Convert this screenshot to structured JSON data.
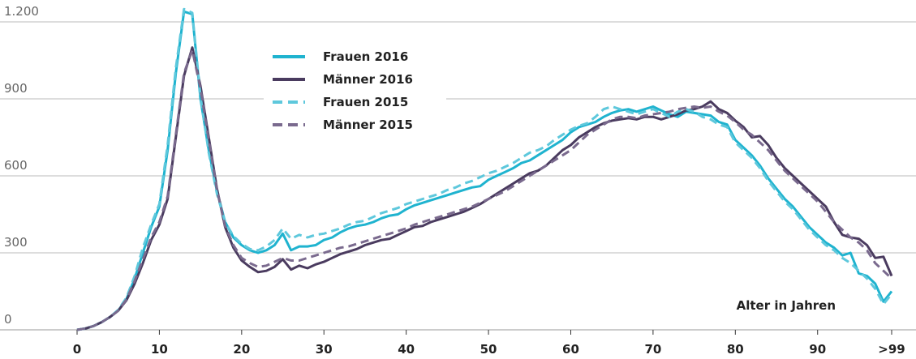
{
  "chart_data": {
    "type": "line",
    "x_label": "Alter in Jahren",
    "x": [
      0,
      1,
      2,
      3,
      4,
      5,
      6,
      7,
      8,
      9,
      10,
      11,
      12,
      13,
      14,
      15,
      16,
      17,
      18,
      19,
      20,
      21,
      22,
      23,
      24,
      25,
      26,
      27,
      28,
      29,
      30,
      31,
      32,
      33,
      34,
      35,
      36,
      37,
      38,
      39,
      40,
      41,
      42,
      43,
      44,
      45,
      46,
      47,
      48,
      49,
      50,
      51,
      52,
      53,
      54,
      55,
      56,
      57,
      58,
      59,
      60,
      61,
      62,
      63,
      64,
      65,
      66,
      67,
      68,
      69,
      70,
      71,
      72,
      73,
      74,
      75,
      76,
      77,
      78,
      79,
      80,
      81,
      82,
      83,
      84,
      85,
      86,
      87,
      88,
      89,
      90,
      91,
      92,
      93,
      94,
      95,
      96,
      97,
      98,
      99
    ],
    "series": [
      {
        "name": "Frauen 2016",
        "color": "#1fb3cf",
        "dash": false,
        "values": [
          0,
          5,
          15,
          30,
          50,
          75,
          120,
          200,
          300,
          400,
          480,
          700,
          1000,
          1240,
          1230,
          900,
          700,
          540,
          420,
          360,
          330,
          310,
          300,
          310,
          330,
          375,
          310,
          325,
          325,
          330,
          350,
          360,
          380,
          395,
          405,
          410,
          420,
          435,
          445,
          450,
          470,
          485,
          495,
          505,
          515,
          525,
          535,
          545,
          555,
          560,
          585,
          600,
          615,
          630,
          650,
          660,
          680,
          700,
          720,
          740,
          770,
          790,
          800,
          810,
          830,
          845,
          855,
          860,
          850,
          860,
          870,
          855,
          840,
          830,
          850,
          845,
          840,
          835,
          810,
          800,
          740,
          710,
          680,
          640,
          590,
          550,
          510,
          480,
          440,
          400,
          370,
          340,
          320,
          290,
          300,
          220,
          210,
          180,
          110,
          150
        ]
      },
      {
        "name": "Männer 2016",
        "color": "#4a3b5f",
        "dash": false,
        "values": [
          0,
          5,
          15,
          30,
          50,
          75,
          115,
          180,
          260,
          350,
          410,
          510,
          750,
          990,
          1100,
          950,
          750,
          550,
          400,
          320,
          270,
          245,
          225,
          230,
          245,
          275,
          235,
          250,
          240,
          255,
          265,
          280,
          295,
          305,
          315,
          330,
          340,
          350,
          355,
          370,
          385,
          400,
          405,
          420,
          430,
          440,
          450,
          460,
          475,
          490,
          510,
          530,
          550,
          570,
          590,
          610,
          620,
          640,
          670,
          700,
          720,
          750,
          770,
          790,
          805,
          815,
          820,
          825,
          820,
          830,
          830,
          820,
          830,
          840,
          855,
          860,
          870,
          890,
          860,
          845,
          815,
          790,
          750,
          755,
          720,
          670,
          630,
          600,
          570,
          540,
          510,
          480,
          420,
          370,
          360,
          355,
          330,
          280,
          285,
          210
        ]
      },
      {
        "name": "Frauen 2015",
        "color": "#5ec8dc",
        "dash": true,
        "values": [
          0,
          5,
          15,
          30,
          50,
          78,
          125,
          210,
          320,
          410,
          490,
          720,
          1020,
          1250,
          1235,
          910,
          690,
          530,
          420,
          365,
          335,
          315,
          310,
          325,
          350,
          395,
          355,
          370,
          360,
          370,
          375,
          385,
          395,
          410,
          420,
          425,
          440,
          455,
          465,
          475,
          490,
          500,
          510,
          520,
          530,
          545,
          555,
          570,
          580,
          595,
          610,
          620,
          635,
          650,
          670,
          690,
          700,
          715,
          740,
          760,
          780,
          795,
          805,
          830,
          860,
          870,
          860,
          850,
          840,
          850,
          860,
          845,
          830,
          850,
          860,
          850,
          830,
          820,
          800,
          790,
          730,
          700,
          670,
          630,
          580,
          540,
          500,
          470,
          430,
          390,
          360,
          330,
          310,
          280,
          260,
          230,
          200,
          160,
          100,
          140
        ]
      },
      {
        "name": "Männer 2015",
        "color": "#7a6a8e",
        "dash": true,
        "values": [
          0,
          5,
          15,
          30,
          50,
          75,
          118,
          190,
          275,
          360,
          420,
          520,
          760,
          1000,
          1090,
          940,
          740,
          545,
          405,
          330,
          280,
          260,
          245,
          250,
          265,
          280,
          270,
          270,
          280,
          290,
          300,
          310,
          320,
          325,
          335,
          345,
          355,
          365,
          375,
          385,
          395,
          410,
          420,
          430,
          440,
          450,
          460,
          470,
          480,
          495,
          510,
          525,
          540,
          560,
          580,
          600,
          620,
          640,
          660,
          680,
          700,
          730,
          760,
          780,
          800,
          820,
          830,
          830,
          825,
          835,
          840,
          845,
          850,
          860,
          865,
          870,
          865,
          870,
          850,
          835,
          810,
          780,
          760,
          730,
          700,
          660,
          620,
          590,
          560,
          530,
          500,
          460,
          420,
          390,
          360,
          340,
          310,
          260,
          230,
          200
        ]
      }
    ],
    "xlim": [
      -3,
      102
    ],
    "ylim": [
      0,
      1250
    ],
    "xticks": [
      0,
      10,
      20,
      30,
      40,
      50,
      60,
      70,
      80,
      90,
      {
        "value": 99,
        "label": ">99"
      }
    ],
    "yticks": [
      0,
      300,
      600,
      900,
      {
        "value": 1200,
        "label": "1.200"
      }
    ],
    "grid": true
  }
}
